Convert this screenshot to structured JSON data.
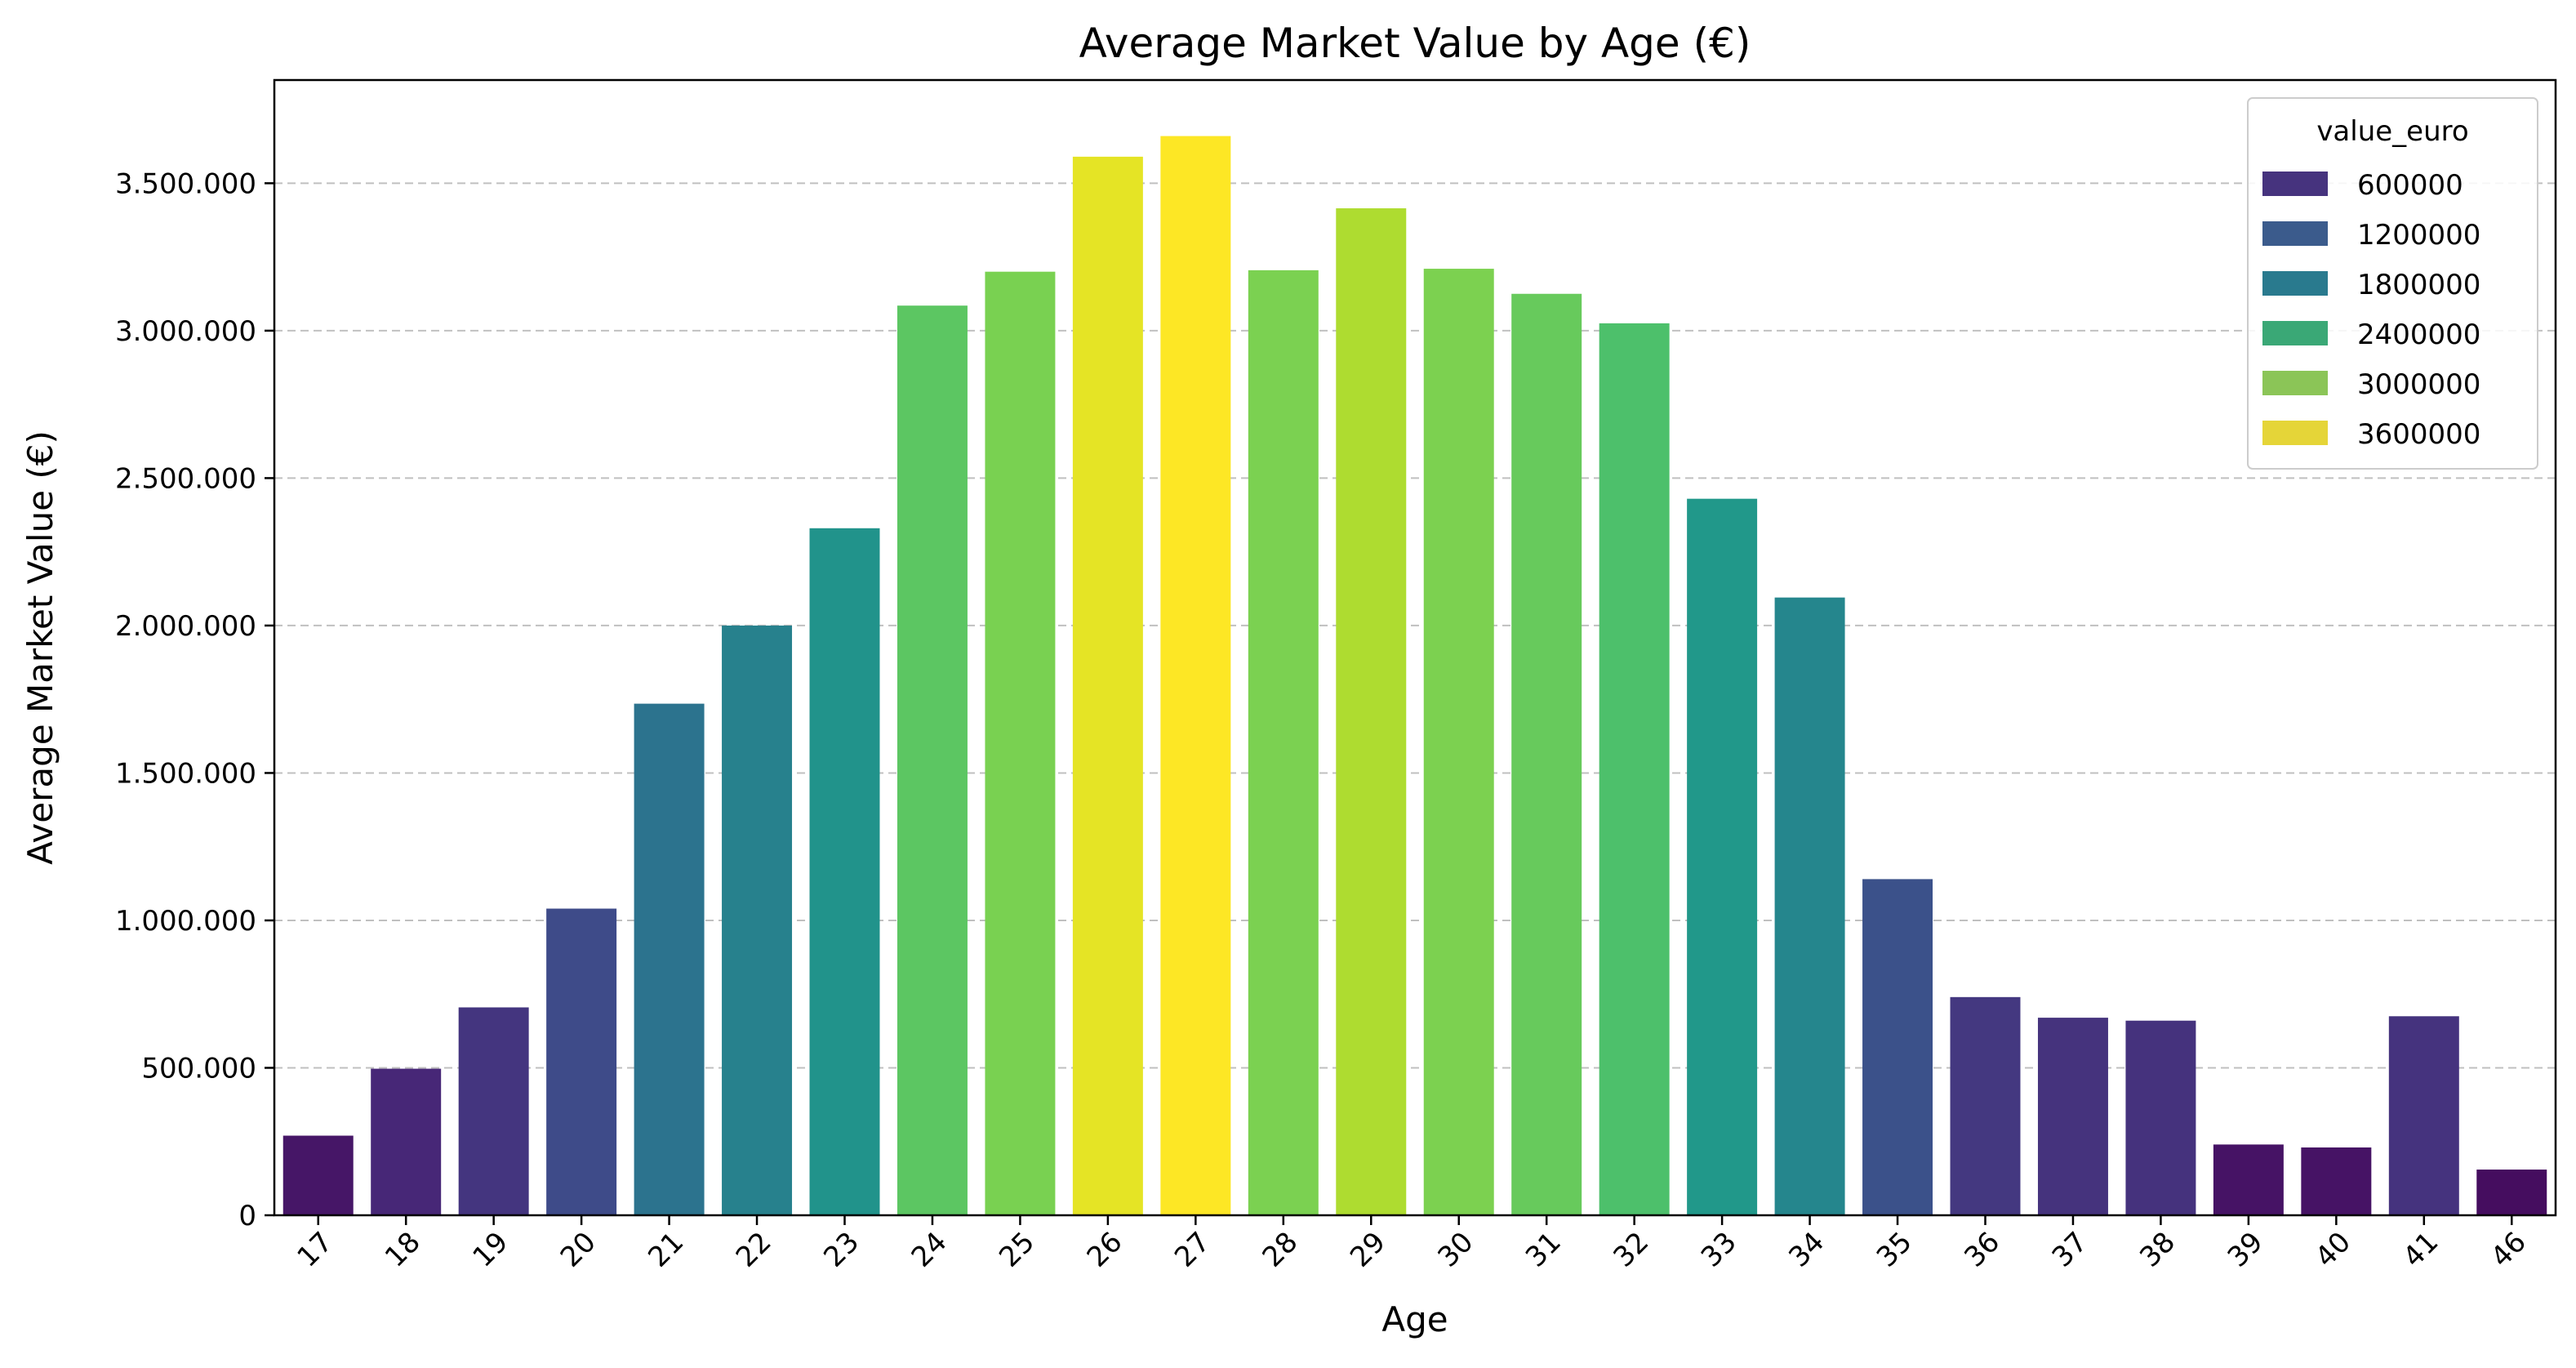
{
  "chart_data": {
    "type": "bar",
    "title": "Average Market Value by Age (€)",
    "xlabel": "Age",
    "ylabel": "Average Market Value (€)",
    "categories": [
      "17",
      "18",
      "19",
      "20",
      "21",
      "22",
      "23",
      "24",
      "25",
      "26",
      "27",
      "28",
      "29",
      "30",
      "31",
      "32",
      "33",
      "34",
      "35",
      "36",
      "37",
      "38",
      "39",
      "40",
      "41",
      "46"
    ],
    "values": [
      270000,
      497000,
      705000,
      1040000,
      1735000,
      2000000,
      2330000,
      3085000,
      3200000,
      3590000,
      3660000,
      3205000,
      3415000,
      3210000,
      3125000,
      3025000,
      2430000,
      2095000,
      1140000,
      740000,
      670000,
      660000,
      240000,
      230000,
      675000,
      155000
    ],
    "ylim": [
      0,
      3850000
    ],
    "yticks": [
      0,
      500000,
      1000000,
      1500000,
      2000000,
      2500000,
      3000000,
      3500000
    ],
    "ytick_labels": [
      "0",
      "500.000",
      "1.000.000",
      "1.500.000",
      "2.000.000",
      "2.500.000",
      "3.000.000",
      "3.500.000"
    ],
    "grid": "y-dashed",
    "colormap": "viridis",
    "hue_range": [
      0,
      3660000
    ],
    "legend": {
      "title": "value_euro",
      "placement": "top-right",
      "entries": [
        {
          "label": "600000",
          "color": "#46337e"
        },
        {
          "label": "1200000",
          "color": "#3b5b8c"
        },
        {
          "label": "1800000",
          "color": "#297a8e"
        },
        {
          "label": "2400000",
          "color": "#3aa876"
        },
        {
          "label": "3000000",
          "color": "#8bc557"
        },
        {
          "label": "3600000",
          "color": "#e5d538"
        }
      ]
    }
  }
}
